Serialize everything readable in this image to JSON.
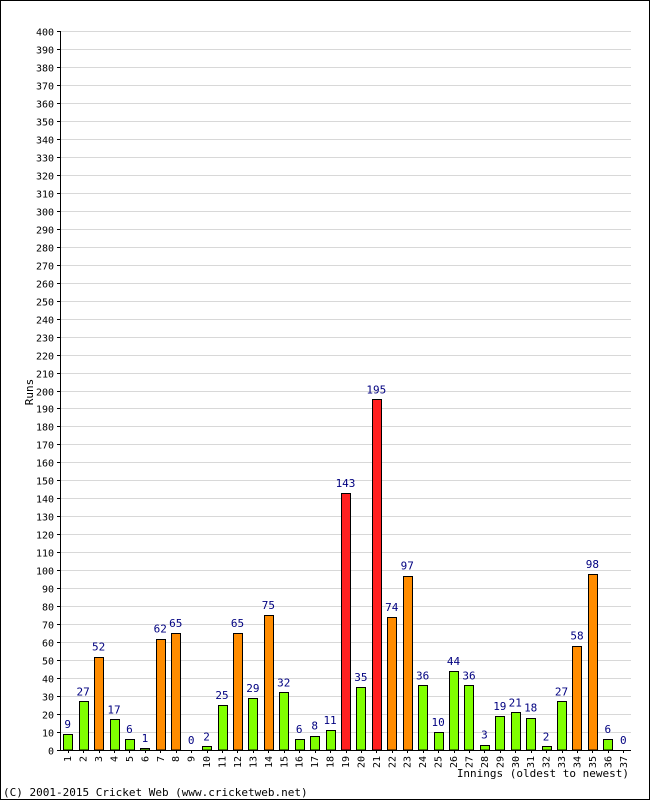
{
  "chart_data": {
    "type": "bar",
    "title": "",
    "xlabel": "Innings (oldest to newest)",
    "ylabel": "Runs",
    "ylim": [
      0,
      400
    ],
    "ytick_step": 10,
    "grid": true,
    "categories": [
      "1",
      "2",
      "3",
      "4",
      "5",
      "6",
      "7",
      "8",
      "9",
      "10",
      "11",
      "12",
      "13",
      "14",
      "15",
      "16",
      "17",
      "18",
      "19",
      "20",
      "21",
      "22",
      "23",
      "24",
      "25",
      "26",
      "27",
      "28",
      "29",
      "30",
      "31",
      "32",
      "33",
      "34",
      "35",
      "36",
      "37"
    ],
    "values": [
      9,
      27,
      52,
      17,
      6,
      1,
      62,
      65,
      0,
      2,
      25,
      65,
      29,
      75,
      32,
      6,
      8,
      11,
      143,
      35,
      195,
      74,
      97,
      36,
      10,
      44,
      36,
      3,
      19,
      21,
      18,
      2,
      27,
      58,
      98,
      6,
      0
    ],
    "value_labels": [
      "9",
      "27",
      "52",
      "17",
      "6",
      "1",
      "62",
      "65",
      "0",
      "2",
      "25",
      "65",
      "29",
      "75",
      "32",
      "6",
      "8",
      "11",
      "143",
      "35",
      "195",
      "74",
      "97",
      "36",
      "10",
      "44",
      "36",
      "3",
      "19",
      "21",
      "18",
      "2",
      "27",
      "58",
      "98",
      "6",
      "0"
    ],
    "drawn_bars": [
      true,
      true,
      true,
      true,
      true,
      true,
      true,
      true,
      false,
      true,
      true,
      true,
      true,
      true,
      true,
      true,
      true,
      true,
      true,
      true,
      true,
      true,
      true,
      true,
      true,
      true,
      true,
      true,
      true,
      true,
      true,
      true,
      true,
      true,
      true,
      true,
      false
    ],
    "bar_class": [
      "lt50",
      "lt50",
      "50s",
      "lt50",
      "lt50",
      "lt50",
      "50s",
      "50s",
      "lt50",
      "lt50",
      "lt50",
      "50s",
      "lt50",
      "50s",
      "lt50",
      "lt50",
      "lt50",
      "lt50",
      "100s",
      "lt50",
      "100s",
      "50s",
      "50s",
      "lt50",
      "lt50",
      "lt50",
      "lt50",
      "lt50",
      "lt50",
      "lt50",
      "lt50",
      "lt50",
      "lt50",
      "50s",
      "50s",
      "lt50",
      "lt50"
    ],
    "colors": {
      "lt50": "#80ff00",
      "50s": "#ff8c00",
      "100s": "#ff2020",
      "bar_edge": "#000000",
      "grid": "#d8d8d8",
      "value_label": "#000080"
    }
  },
  "footer": {
    "copyright": "(C) 2001-2015 Cricket Web (www.cricketweb.net)"
  }
}
